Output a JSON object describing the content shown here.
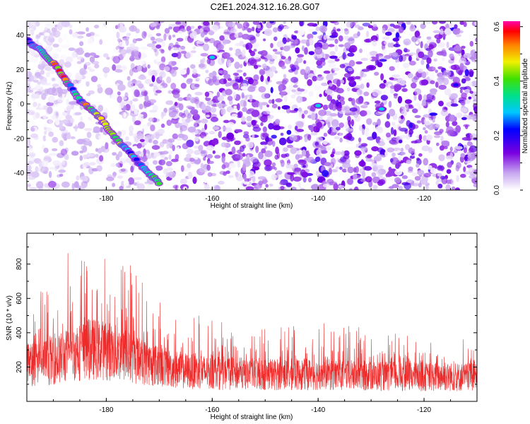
{
  "title": "C2E1.2024.312.16.28.G07",
  "colors": {
    "snr_line": "#ee2b2b",
    "track_low": "#8a2be2",
    "axis": "#000000"
  },
  "chart_data": [
    {
      "type": "heatmap",
      "xlabel": "Height of straight line (km)",
      "ylabel": "Frequency (Hz)",
      "xlim": [
        -195,
        -110
      ],
      "ylim": [
        -50,
        48
      ],
      "xticks": [
        -180,
        -160,
        -140,
        -120
      ],
      "yticks": [
        40,
        20,
        0,
        -20,
        -40
      ],
      "colorbar": {
        "label": "Normalized spectral amplitude",
        "range": [
          0,
          0.62
        ],
        "ticks": [
          0.0,
          0.2,
          0.4,
          0.6
        ],
        "colormap": "rainbow (white-violet-blue-cyan-green-yellow-red-magenta)"
      },
      "track": {
        "description": "bright diagonal ridge",
        "points": [
          {
            "x": -195,
            "y": 37
          },
          {
            "x": -192,
            "y": 30
          },
          {
            "x": -189,
            "y": 20
          },
          {
            "x": -187,
            "y": 11
          },
          {
            "x": -185,
            "y": 2
          },
          {
            "x": -182,
            "y": -5
          },
          {
            "x": -180,
            "y": -13
          },
          {
            "x": -178,
            "y": -21
          },
          {
            "x": -176,
            "y": -27
          },
          {
            "x": -174,
            "y": -34
          },
          {
            "x": -172,
            "y": -40
          },
          {
            "x": -170,
            "y": -46
          }
        ]
      },
      "hotspots": [
        {
          "x": -160,
          "y": 27,
          "amplitude": 0.3
        },
        {
          "x": -140,
          "y": -1,
          "amplitude": 0.3
        },
        {
          "x": -128,
          "y": -3,
          "amplitude": 0.3
        },
        {
          "x": -130,
          "y": 21,
          "amplitude": 0.15
        },
        {
          "x": -114,
          "y": 11,
          "amplitude": 0.2
        }
      ]
    },
    {
      "type": "line",
      "xlabel": "Height of straight line (km)",
      "ylabel": "SNR (10 * v/v)",
      "xlim": [
        -195,
        -110
      ],
      "ylim": [
        0,
        980
      ],
      "xticks": [
        -180,
        -160,
        -140,
        -120
      ],
      "yticks": [
        200,
        400,
        600,
        800
      ],
      "envelope": [
        {
          "x": -195,
          "mean": 250,
          "peak": 460
        },
        {
          "x": -190,
          "mean": 280,
          "peak": 870
        },
        {
          "x": -186,
          "mean": 330,
          "peak": 880
        },
        {
          "x": -183,
          "mean": 360,
          "peak": 960
        },
        {
          "x": -180,
          "mean": 350,
          "peak": 980
        },
        {
          "x": -177,
          "mean": 320,
          "peak": 900
        },
        {
          "x": -174,
          "mean": 280,
          "peak": 770
        },
        {
          "x": -170,
          "mean": 240,
          "peak": 620
        },
        {
          "x": -165,
          "mean": 210,
          "peak": 560
        },
        {
          "x": -160,
          "mean": 195,
          "peak": 470
        },
        {
          "x": -150,
          "mean": 185,
          "peak": 430
        },
        {
          "x": -140,
          "mean": 185,
          "peak": 480
        },
        {
          "x": -130,
          "mean": 175,
          "peak": 420
        },
        {
          "x": -120,
          "mean": 170,
          "peak": 400
        },
        {
          "x": -110,
          "mean": 165,
          "peak": 360
        }
      ]
    }
  ]
}
